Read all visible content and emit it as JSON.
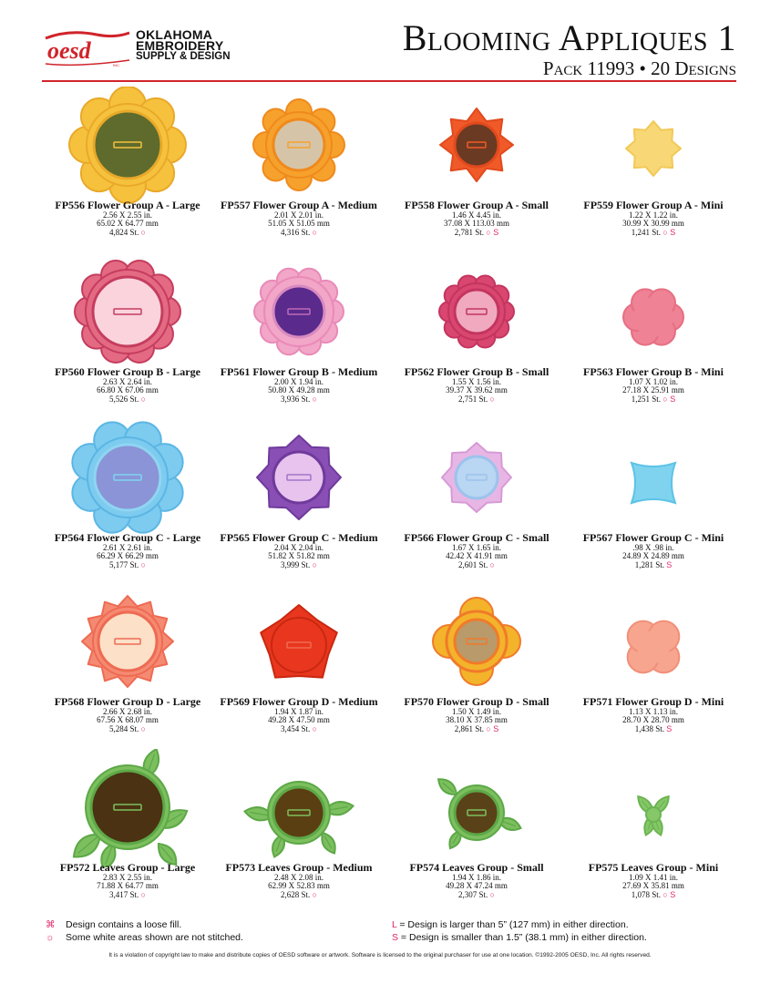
{
  "header": {
    "logo_mark": "oesd",
    "logo_mark_small": "INC.",
    "logo_line1": "OKLAHOMA",
    "logo_line2": "EMBROIDERY",
    "logo_line3": "SUPPLY & DESIGN",
    "title": "Blooming Appliques 1",
    "subtitle": "Pack 11993 • 20 Designs",
    "accent_color": "#d0232a"
  },
  "designs": [
    {
      "code_name": "FP556  Flower Group A - Large",
      "size_in": "2.56 X 2.55 in.",
      "size_mm": "65.02 X 64.77 mm",
      "stitches": "4,824 St.",
      "marks": "○",
      "shape": "flower-a-large",
      "colors": [
        "#f6c23e",
        "#e9a92a",
        "#5e6b2c"
      ]
    },
    {
      "code_name": "FP557  Flower Group A - Medium",
      "size_in": "2.01 X 2.01 in.",
      "size_mm": "51.05 X 51.05 mm",
      "stitches": "4,316 St.",
      "marks": "○",
      "shape": "flower-a-medium",
      "colors": [
        "#f6a12c",
        "#ef8a1d",
        "#d6c4a8"
      ]
    },
    {
      "code_name": "FP558  Flower Group A - Small",
      "size_in": "1.46 X 4.45 in.",
      "size_mm": "37.08 X 113.03 mm",
      "stitches": "2,781 St.",
      "marks": "○ S",
      "shape": "flower-a-small",
      "colors": [
        "#ef5a28",
        "#e24a1e",
        "#6b3a22"
      ]
    },
    {
      "code_name": "FP559  Flower Group A - Mini",
      "size_in": "1.22 X 1.22 in.",
      "size_mm": "30.99 X 30.99 mm",
      "stitches": "1,241 St.",
      "marks": "○ S",
      "shape": "flower-a-mini",
      "colors": [
        "#f8d776",
        "#f2c957"
      ]
    },
    {
      "code_name": "FP560  Flower Group B - Large",
      "size_in": "2.63 X 2.64 in.",
      "size_mm": "66.80 X 67.06 mm",
      "stitches": "5,526 St.",
      "marks": "○",
      "shape": "flower-b-large",
      "colors": [
        "#e46a83",
        "#c53d5e",
        "#fbd3dd"
      ]
    },
    {
      "code_name": "FP561  Flower Group B - Medium",
      "size_in": "2.00 X 1.94 in.",
      "size_mm": "50.80 X 49.28 mm",
      "stitches": "3,936 St.",
      "marks": "○",
      "shape": "flower-b-medium",
      "colors": [
        "#f2a6c8",
        "#e98ab7",
        "#5a2a8c"
      ]
    },
    {
      "code_name": "FP562  Flower Group B - Small",
      "size_in": "1.55 X 1.56 in.",
      "size_mm": "39.37 X 39.62 mm",
      "stitches": "2,751 St.",
      "marks": "○",
      "shape": "flower-b-small",
      "colors": [
        "#d9466f",
        "#c33560",
        "#f0a9bf"
      ]
    },
    {
      "code_name": "FP563  Flower Group B - Mini",
      "size_in": "1.07 X 1.02 in.",
      "size_mm": "27.18 X 25.91 mm",
      "stitches": "1,251 St.",
      "marks": "○ S",
      "shape": "flower-b-mini",
      "colors": [
        "#ef8294",
        "#e66f83"
      ]
    },
    {
      "code_name": "FP564  Flower Group C - Large",
      "size_in": "2.61 X 2.61 in.",
      "size_mm": "66.29 X 66.29 mm",
      "stitches": "5,177 St.",
      "marks": "○",
      "shape": "flower-c-large",
      "colors": [
        "#7dcbef",
        "#5bb6e4",
        "#8a94d6"
      ]
    },
    {
      "code_name": "FP565  Flower Group C - Medium",
      "size_in": "2.04 X 2.04 in.",
      "size_mm": "51.82 X 51.82 mm",
      "stitches": "3,999 St.",
      "marks": "○",
      "shape": "flower-c-medium",
      "colors": [
        "#8a4fb4",
        "#6f3a9c",
        "#e7c3ee"
      ]
    },
    {
      "code_name": "FP566  Flower Group C - Small",
      "size_in": "1.67 X 1.65 in.",
      "size_mm": "42.42 X 41.91 mm",
      "stitches": "2,601 St.",
      "marks": "○",
      "shape": "flower-c-small",
      "colors": [
        "#e7b6e5",
        "#d79ad6",
        "#b9d6f2"
      ]
    },
    {
      "code_name": "FP567  Flower Group C - Mini",
      "size_in": ".98 X .98 in.",
      "size_mm": "24.89 X 24.89 mm",
      "stitches": "1,281 St.",
      "marks": "S",
      "shape": "flower-c-mini",
      "colors": [
        "#7fd3ef",
        "#5cc3e6"
      ]
    },
    {
      "code_name": "FP568  Flower Group D - Large",
      "size_in": "2.66 X 2.68 in.",
      "size_mm": "67.56 X 68.07 mm",
      "stitches": "5,284 St.",
      "marks": "○",
      "shape": "flower-d-large",
      "colors": [
        "#f58a72",
        "#ee6a52",
        "#fde0c8"
      ]
    },
    {
      "code_name": "FP569  Flower Group D - Medium",
      "size_in": "1.94 X      1.87 in.",
      "size_mm": "49.28 X 47.50 mm",
      "stitches": "3,454 St.",
      "marks": "○",
      "shape": "flower-d-medium",
      "colors": [
        "#e8371e",
        "#c92810"
      ]
    },
    {
      "code_name": "FP570  Flower Group D - Small",
      "size_in": "1.50 X 1.49 in.",
      "size_mm": "38.10 X 37.85 mm",
      "stitches": "2,861 St.",
      "marks": "○ S",
      "shape": "flower-d-small",
      "colors": [
        "#f07b2a",
        "#f3b32a",
        "#b99a6a"
      ]
    },
    {
      "code_name": "FP571  Flower Group D - Mini",
      "size_in": "1.13 X 1.13 in.",
      "size_mm": "28.70 X 28.70 mm",
      "stitches": "1,438 St.",
      "marks": "S",
      "shape": "flower-d-mini",
      "colors": [
        "#f7a58f",
        "#f28f79"
      ]
    },
    {
      "code_name": "FP572  Leaves Group - Large",
      "size_in": "2.83 X 2.55 in.",
      "size_mm": "71.88 X 64.77 mm",
      "stitches": "3,417 St.",
      "marks": "○",
      "shape": "leaves-large",
      "colors": [
        "#7cbf5e",
        "#5da847",
        "#4a3212"
      ]
    },
    {
      "code_name": "FP573  Leaves Group - Medium",
      "size_in": "2.48 X 2.08 in.",
      "size_mm": "62.99 X 52.83 mm",
      "stitches": "2,628 St.",
      "marks": "○",
      "shape": "leaves-medium",
      "colors": [
        "#7cbf5e",
        "#5da847",
        "#5a3f12"
      ]
    },
    {
      "code_name": "FP574  Leaves Group - Small",
      "size_in": "1.94 X 1.86 in.",
      "size_mm": "49.28 X 47.24 mm",
      "stitches": "2,307 St.",
      "marks": "○",
      "shape": "leaves-small",
      "colors": [
        "#7cbf5e",
        "#5da847",
        "#5a4218"
      ]
    },
    {
      "code_name": "FP575  Leaves Group - Mini",
      "size_in": "1.09 X 1.41 in.",
      "size_mm": "27.69 X 35.81 mm",
      "stitches": "1,078 St.",
      "marks": "○ S",
      "shape": "leaves-mini",
      "colors": [
        "#86c76a",
        "#6bb550"
      ]
    }
  ],
  "legend": {
    "loose_fill_symbol": "⌘",
    "loose_fill_text": "Design contains a loose fill.",
    "white_symbol": "☼",
    "white_text": "Some white areas shown are not stitched.",
    "large_letter": "L",
    "large_text": " = Design is larger than 5” (127 mm) in either direction.",
    "small_letter": "S",
    "small_text": " = Design is smaller than 1.5” (38.1 mm) in either direction."
  },
  "copyright": "It is a violation of copyright law to make and distribute copies of OESD software or artwork. Software is licensed to the original purchaser for use at one location. ©1992-2005 OESD, Inc. All rights reserved."
}
